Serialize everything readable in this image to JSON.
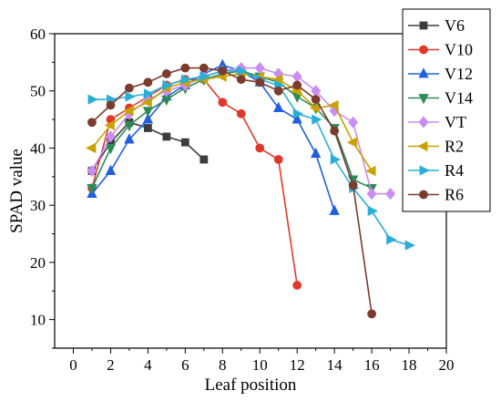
{
  "chart_data": {
    "type": "line",
    "title": "",
    "xlabel": "Leaf position",
    "ylabel": "SPAD value",
    "xlim": [
      -1,
      20
    ],
    "ylim": [
      5,
      60
    ],
    "xticks": [
      0,
      2,
      4,
      6,
      8,
      10,
      12,
      14,
      16,
      18,
      20
    ],
    "yticks": [
      10,
      20,
      30,
      40,
      50,
      60
    ],
    "grid": false,
    "legend_position": "top-right",
    "series": [
      {
        "name": "V6",
        "color": "#3d3d3d",
        "marker": "square",
        "x": [
          1,
          2,
          3,
          4,
          5,
          6,
          7
        ],
        "y": [
          36,
          41,
          44.5,
          43.5,
          42,
          41,
          38
        ]
      },
      {
        "name": "V10",
        "color": "#e0392b",
        "marker": "circle",
        "x": [
          1,
          2,
          3,
          4,
          5,
          6,
          7,
          8,
          9,
          10,
          11,
          12
        ],
        "y": [
          33,
          45,
          47,
          49,
          51,
          52,
          52,
          48,
          46,
          40,
          38,
          16
        ]
      },
      {
        "name": "V12",
        "color": "#1f5fe0",
        "marker": "triangle-up",
        "x": [
          1,
          2,
          3,
          4,
          5,
          6,
          7,
          8,
          9,
          10,
          11,
          12,
          13,
          14
        ],
        "y": [
          32,
          36,
          41.5,
          45,
          49,
          51,
          53,
          54.5,
          53.5,
          51.5,
          47,
          45,
          39,
          29
        ]
      },
      {
        "name": "V14",
        "color": "#2e8b57",
        "marker": "triangle-down",
        "x": [
          1,
          2,
          3,
          4,
          5,
          6,
          7,
          8,
          9,
          10,
          11,
          12,
          13,
          14,
          15,
          16
        ],
        "y": [
          33,
          40,
          44,
          46.5,
          48.5,
          50.5,
          52,
          53,
          53.5,
          52.5,
          51.5,
          49,
          47,
          43.5,
          34.5,
          33
        ]
      },
      {
        "name": "VT",
        "color": "#c98ef0",
        "marker": "diamond",
        "x": [
          1,
          2,
          3,
          4,
          5,
          6,
          7,
          8,
          9,
          10,
          11,
          12,
          13,
          14,
          15,
          16,
          17
        ],
        "y": [
          36,
          42,
          46,
          48.5,
          50,
          51,
          52.5,
          53.5,
          54,
          54,
          53,
          52.5,
          50,
          46.5,
          44.5,
          32,
          32
        ]
      },
      {
        "name": "R2",
        "color": "#c9a200",
        "marker": "triangle-left",
        "x": [
          1,
          2,
          3,
          4,
          5,
          6,
          7,
          8,
          9,
          10,
          11,
          12,
          13,
          14,
          15,
          16
        ],
        "y": [
          40,
          44,
          46.5,
          48,
          50.5,
          51.5,
          52,
          52.5,
          53,
          52.5,
          52,
          50,
          47,
          47.5,
          41,
          36
        ]
      },
      {
        "name": "R4",
        "color": "#2aaed6",
        "marker": "triangle-right",
        "x": [
          1,
          2,
          3,
          4,
          5,
          6,
          7,
          8,
          9,
          10,
          11,
          12,
          13,
          14,
          15,
          16,
          17,
          18
        ],
        "y": [
          48.5,
          48.5,
          49,
          49.5,
          51,
          52,
          52.5,
          53.5,
          53.5,
          52,
          51,
          46,
          45,
          38,
          33,
          29,
          24,
          23
        ]
      },
      {
        "name": "R6",
        "color": "#7b3b2e",
        "marker": "circle",
        "x": [
          1,
          2,
          3,
          4,
          5,
          6,
          7,
          8,
          9,
          10,
          11,
          12,
          13,
          14,
          15,
          16
        ],
        "y": [
          44.5,
          47.5,
          50.5,
          51.5,
          53,
          54,
          54,
          53.5,
          52,
          51.5,
          50,
          51,
          48.5,
          43,
          33.5,
          11
        ]
      }
    ]
  }
}
